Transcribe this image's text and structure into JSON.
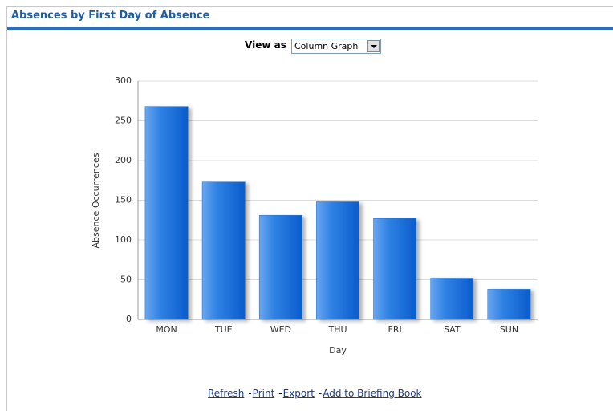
{
  "header": {
    "title": "Absences by First Day of Absence"
  },
  "view_selector": {
    "label": "View as",
    "selected": "Column Graph"
  },
  "links": {
    "items": [
      "Refresh",
      "Print",
      "Export",
      "Add to Briefing Book"
    ],
    "separator": "-"
  },
  "chart_data": {
    "type": "bar",
    "categories": [
      "MON",
      "TUE",
      "WED",
      "THU",
      "FRI",
      "SAT",
      "SUN"
    ],
    "values": [
      268,
      173,
      131,
      148,
      127,
      52,
      38
    ],
    "color": "#1a6fd6",
    "x_label": "Day",
    "y_label": "Absence Occurrences",
    "ylim": [
      0,
      300
    ],
    "yticks": [
      0,
      50,
      100,
      150,
      200,
      250,
      300
    ],
    "grid": true
  }
}
